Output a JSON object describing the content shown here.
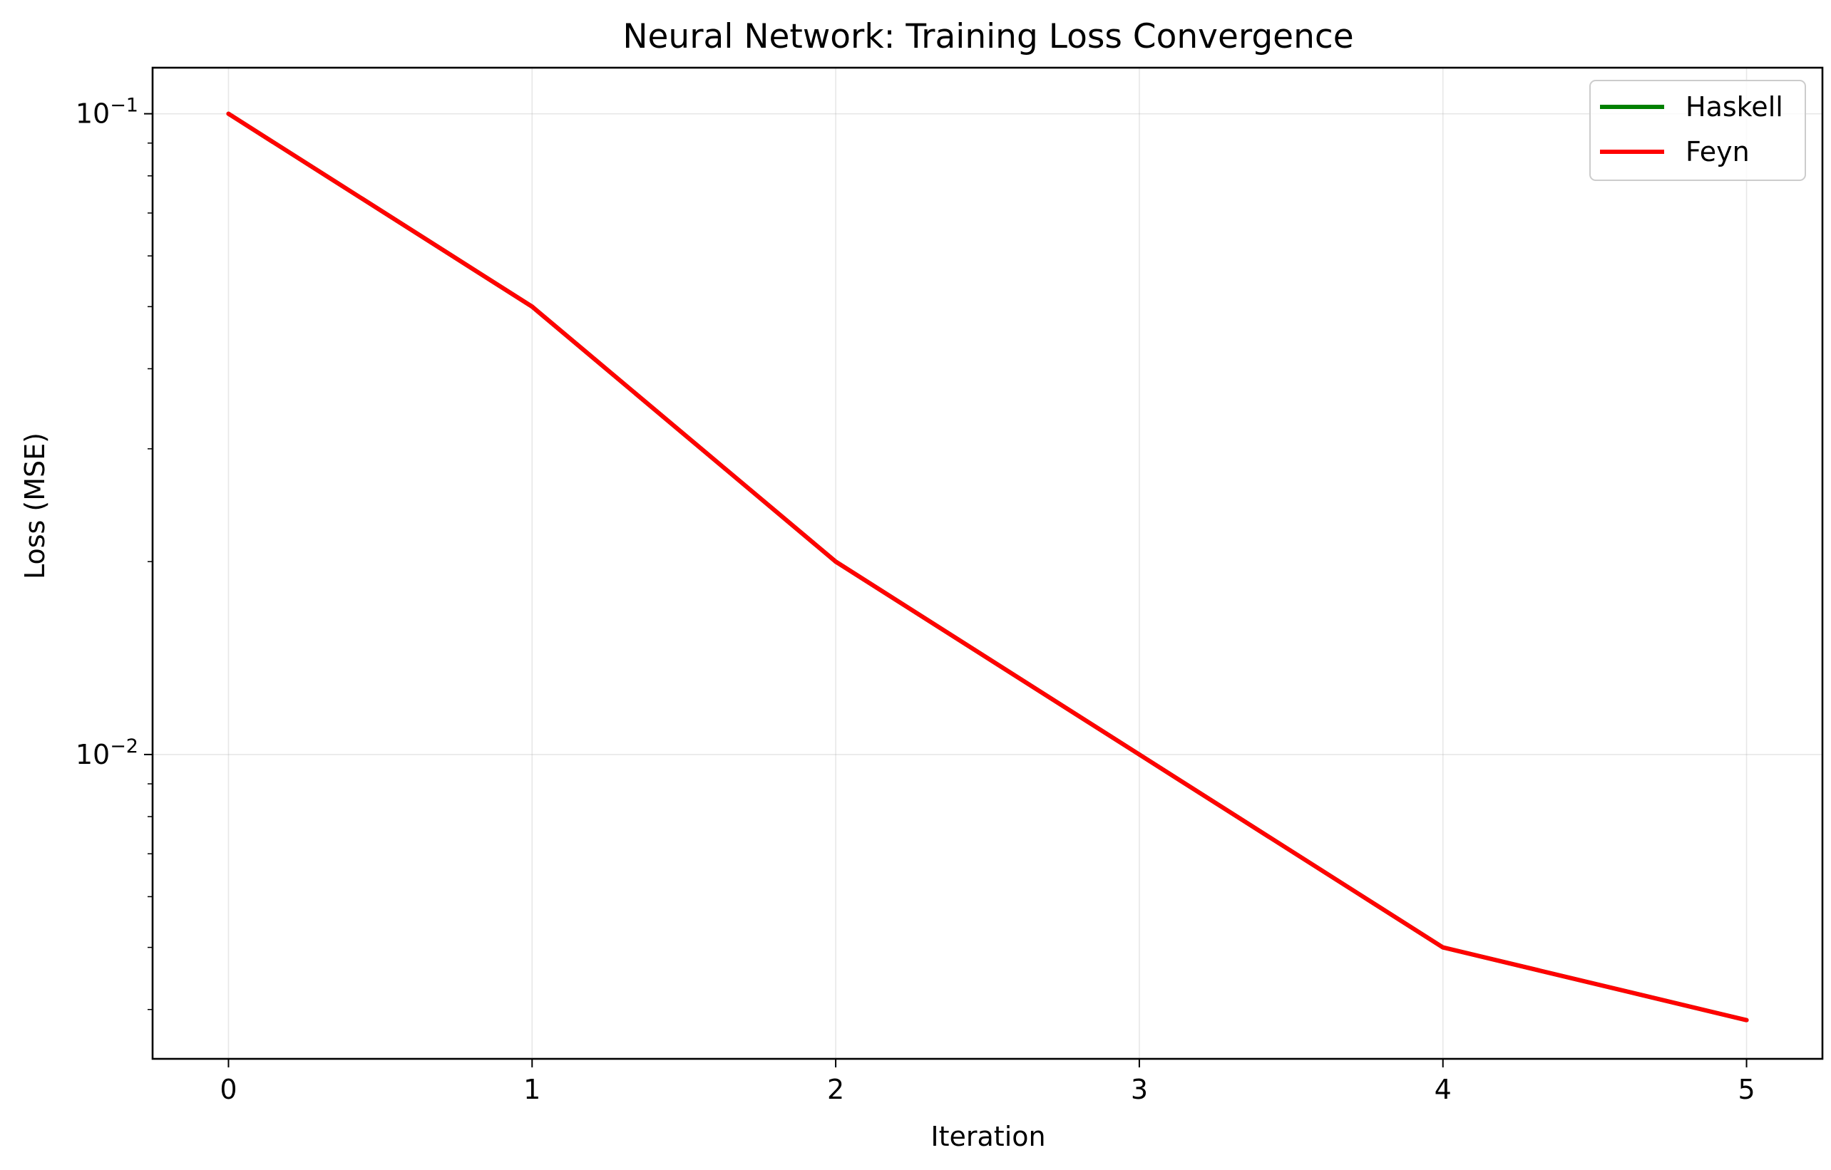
{
  "chart_data": {
    "type": "line",
    "title": "Neural Network: Training Loss Convergence",
    "xlabel": "Iteration",
    "ylabel": "Loss (MSE)",
    "x": [
      0,
      1,
      2,
      3,
      4,
      5
    ],
    "xticks": [
      "0",
      "1",
      "2",
      "3",
      "4",
      "5"
    ],
    "yticks": [
      {
        "value": 0.1,
        "base": "10",
        "exponent": "−1"
      },
      {
        "value": 0.01,
        "base": "10",
        "exponent": "−2"
      }
    ],
    "xlim": [
      -0.25,
      5.25
    ],
    "ylim": [
      0.00335,
      0.118
    ],
    "yscale": "log",
    "grid": true,
    "legend_position": "upper right",
    "series": [
      {
        "name": "Haskell",
        "color": "#008000",
        "values": [
          0.1,
          0.05,
          0.02,
          0.01,
          0.005,
          0.00385
        ]
      },
      {
        "name": "Feyn",
        "color": "#ff0000",
        "values": [
          0.1,
          0.05,
          0.02,
          0.01,
          0.005,
          0.00385
        ]
      }
    ]
  }
}
